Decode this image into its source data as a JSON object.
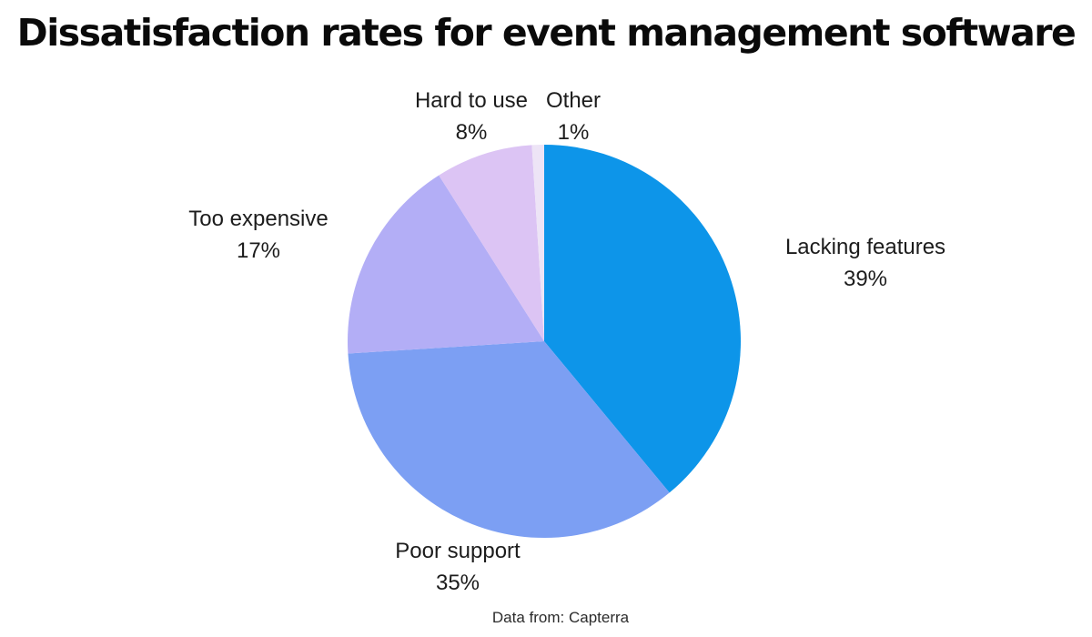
{
  "chart_data": {
    "type": "pie",
    "title": "Dissatisfaction rates for event management software",
    "footnote": "Data from: Capterra",
    "categories": [
      "Lacking features",
      "Poor support",
      "Too expensive",
      "Hard to use",
      "Other"
    ],
    "values": [
      39,
      35,
      17,
      8,
      1
    ],
    "unit": "%",
    "value_labels": [
      "39%",
      "35%",
      "17%",
      "8%",
      "1%"
    ],
    "colors": [
      "#0D95E9",
      "#7C9FF3",
      "#B3AEF6",
      "#DCC4F4",
      "#EDE4F6"
    ],
    "start_angle_deg": 0,
    "direction": "clockwise",
    "legend_position": "none",
    "labels_position": "outside",
    "background_color": "#ffffff",
    "title_color": "#0a0a0a",
    "label_color": "#1c1c1c"
  }
}
